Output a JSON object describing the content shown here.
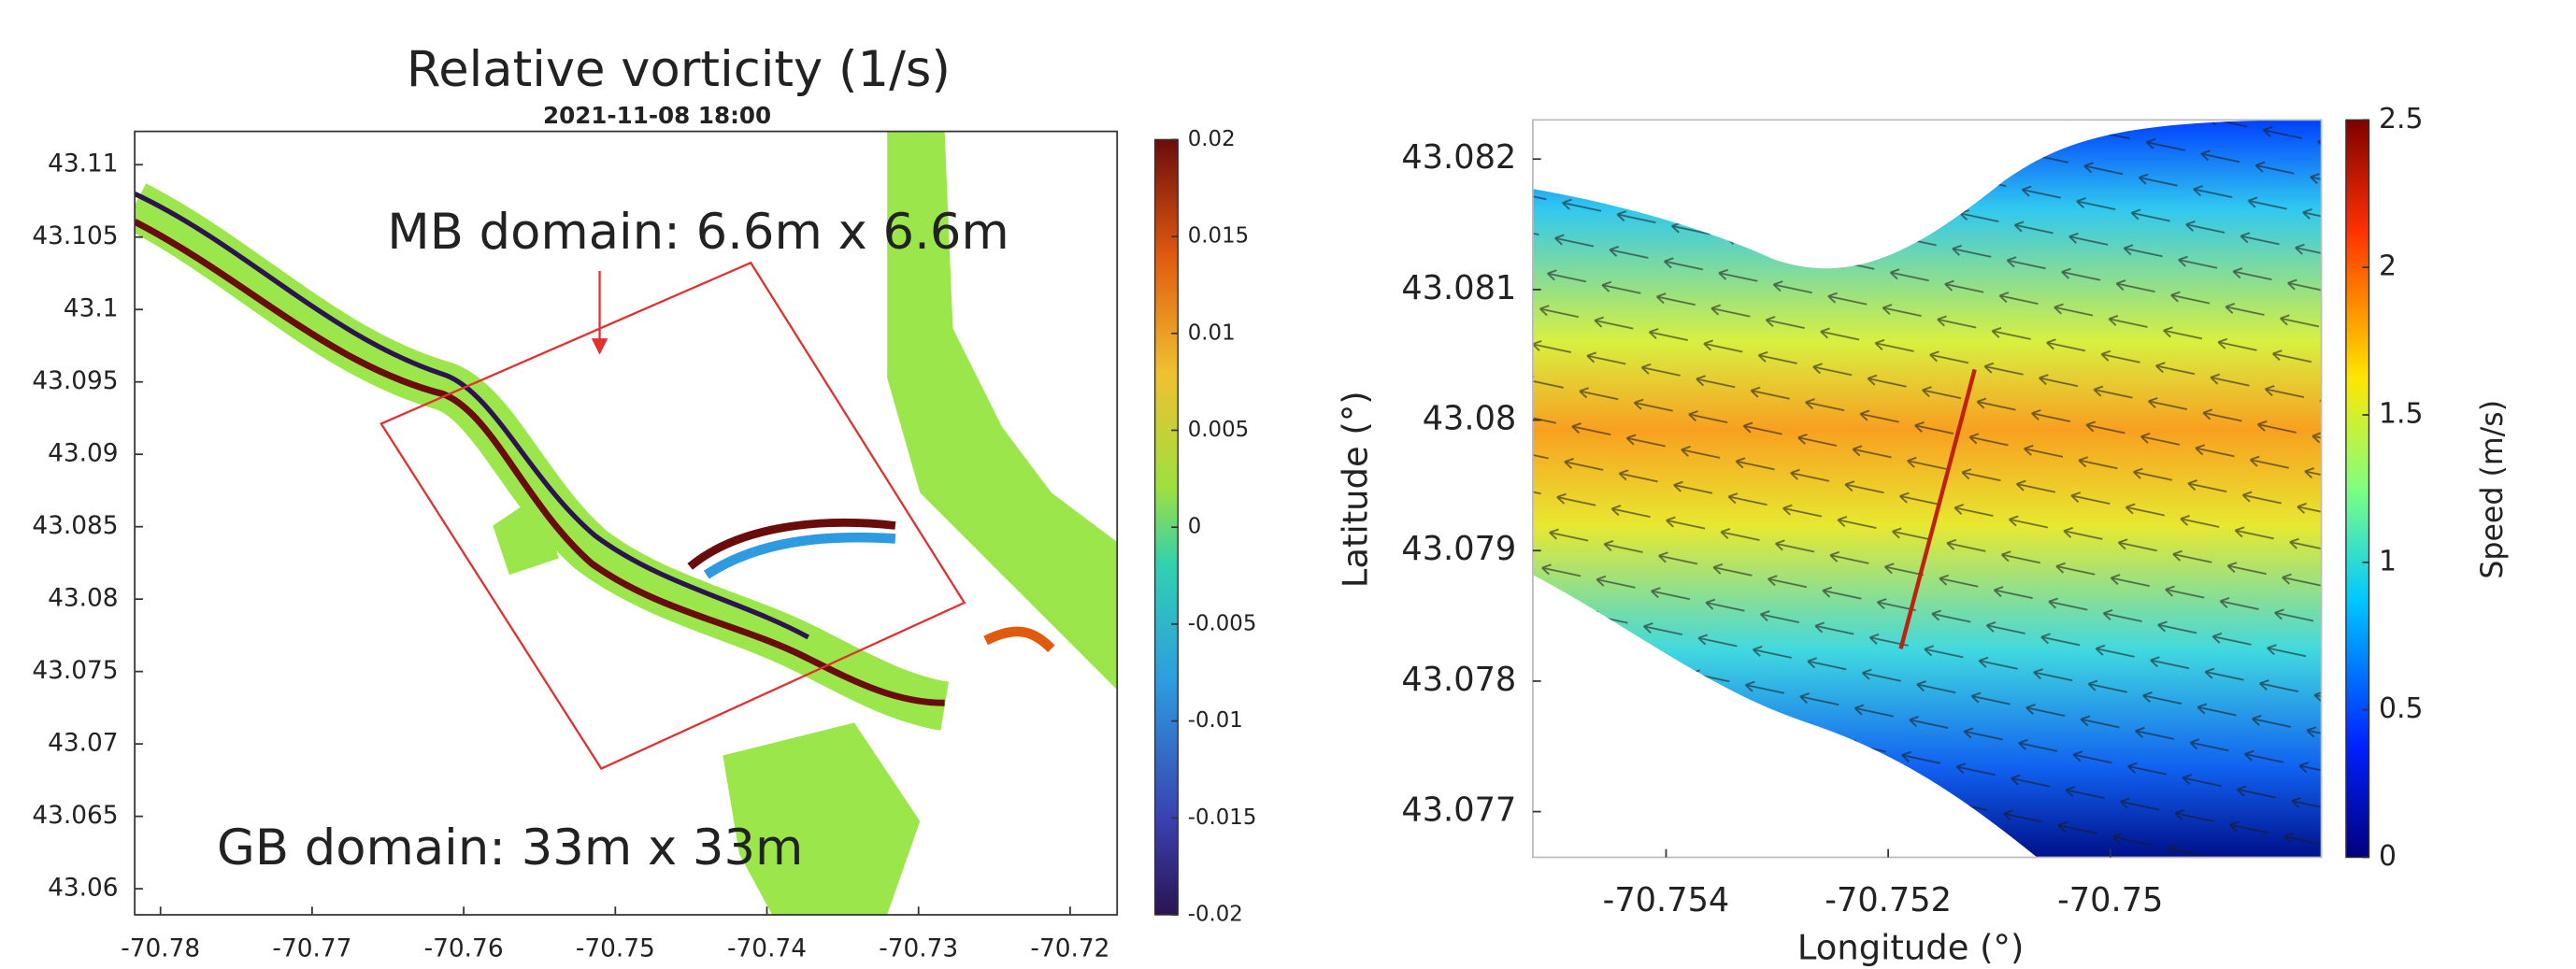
{
  "chart_data": [
    {
      "type": "heatmap",
      "title": "Relative vorticity (1/s)",
      "subtitle": "2021-11-08 18:00",
      "annotations": [
        "MB domain: 6.6m x 6.6m",
        "GB domain: 33m x 33m"
      ],
      "xlim": [
        -70.7817,
        -70.7169
      ],
      "xticks": [
        -70.78,
        -70.77,
        -70.76,
        -70.75,
        -70.74,
        -70.73,
        -70.72
      ],
      "ylim": [
        43.0582,
        43.1123
      ],
      "yticks": [
        43.06,
        43.065,
        43.07,
        43.075,
        43.08,
        43.085,
        43.09,
        43.095,
        43.1,
        43.105,
        43.11
      ],
      "clim": [
        -0.02,
        0.02
      ],
      "cticks": [
        -0.02,
        -0.015,
        -0.01,
        -0.005,
        0,
        0.005,
        0.01,
        0.015,
        0.02
      ]
    },
    {
      "type": "heatmap",
      "xlabel": "Longitude (°)",
      "ylabel": "Latitude (°)",
      "clabel": "Speed (m/s)",
      "xlim": [
        -70.7552,
        -70.7481
      ],
      "xticks": [
        -70.754,
        -70.752,
        -70.75
      ],
      "ylim": [
        43.07665,
        43.0823
      ],
      "yticks": [
        43.077,
        43.078,
        43.079,
        43.08,
        43.081,
        43.082
      ],
      "clim": [
        0,
        2.5
      ],
      "cticks": [
        0,
        0.5,
        1,
        1.5,
        2,
        2.5
      ]
    }
  ]
}
